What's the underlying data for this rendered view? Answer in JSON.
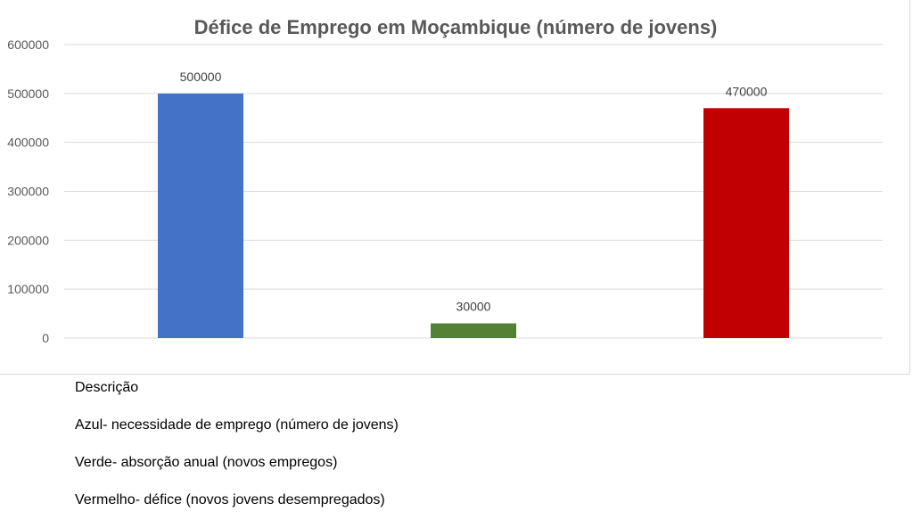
{
  "chart_data": {
    "type": "bar",
    "title": "Défice de Emprego em Moçambique (número de jovens)",
    "categories": [
      "",
      "",
      ""
    ],
    "values": [
      500000,
      30000,
      470000
    ],
    "data_labels": [
      "500000",
      "30000",
      "470000"
    ],
    "colors": [
      "#4472c4",
      "#548235",
      "#c00000"
    ],
    "ylim": [
      0,
      600000
    ],
    "y_ticks": [
      "0",
      "100000",
      "200000",
      "300000",
      "400000",
      "500000",
      "600000"
    ],
    "y_tick_values": [
      0,
      100000,
      200000,
      300000,
      400000,
      500000,
      600000
    ],
    "grid": true,
    "legend": "none",
    "xlabel": "",
    "ylabel": ""
  },
  "description": {
    "heading": "Descrição",
    "lines": [
      "Azul- necessidade de emprego (número de jovens)",
      "Verde- absorção anual (novos empregos)",
      "Vermelho- défice (novos jovens desempregados)"
    ]
  }
}
